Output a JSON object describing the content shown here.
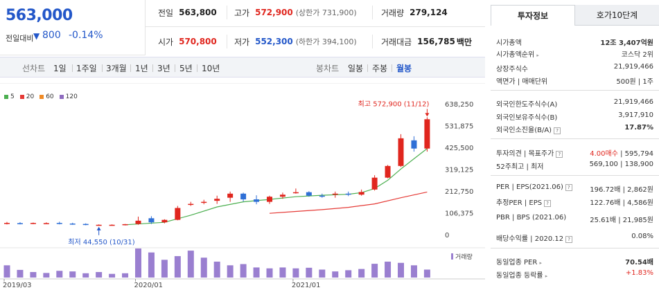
{
  "price": {
    "current": "563,000",
    "change_label": "전일대비",
    "change_arrow": "▼",
    "change_value": "800",
    "change_rate": "-0.14%"
  },
  "quote": {
    "prev_label": "전일",
    "prev_value": "563,800",
    "high_label": "고가",
    "high_value": "572,900",
    "upper_limit": "(상한가 731,900)",
    "volume_label": "거래량",
    "volume_value": "279,124",
    "open_label": "시가",
    "open_value": "570,800",
    "low_label": "저가",
    "low_value": "552,300",
    "lower_limit": "(하한가 394,100)",
    "amount_label": "거래대금",
    "amount_value": "156,785",
    "amount_unit": "백만"
  },
  "periods": {
    "line_label": "선차트",
    "line_items": [
      "1일",
      "1주일",
      "3개월",
      "1년",
      "3년",
      "5년",
      "10년"
    ],
    "candle_label": "봉차트",
    "candle_items": [
      "일봉",
      "주봉",
      "월봉"
    ],
    "active": "월봉"
  },
  "chart_data": {
    "type": "candlestick",
    "legend": [
      {
        "name": "5",
        "color": "#4caf50"
      },
      {
        "name": "20",
        "color": "#e53935"
      },
      {
        "name": "60",
        "color": "#f08a24"
      },
      {
        "name": "120",
        "color": "#8e6bbf"
      }
    ],
    "yticks": [
      "638,250",
      "531,875",
      "425,500",
      "319,125",
      "212,750",
      "106,375",
      "0"
    ],
    "ylim": [
      0,
      638250
    ],
    "xticks": [
      {
        "label": "2019/03",
        "index": 0
      },
      {
        "label": "2020/01",
        "index": 10
      },
      {
        "label": "2021/01",
        "index": 22
      }
    ],
    "annot_high": "최고 572,900 (11/12)",
    "annot_low": "최저 44,550 (10/31)",
    "volume_label": "거래량",
    "candles": [
      {
        "o": 55000,
        "h": 62000,
        "l": 50000,
        "c": 57000,
        "v": 40
      },
      {
        "o": 56000,
        "h": 61000,
        "l": 50000,
        "c": 55000,
        "v": 25
      },
      {
        "o": 55000,
        "h": 59000,
        "l": 51000,
        "c": 57000,
        "v": 18
      },
      {
        "o": 56000,
        "h": 60000,
        "l": 52000,
        "c": 56000,
        "v": 15
      },
      {
        "o": 57000,
        "h": 63000,
        "l": 50000,
        "c": 54000,
        "v": 22
      },
      {
        "o": 54000,
        "h": 58000,
        "l": 48000,
        "c": 52000,
        "v": 20
      },
      {
        "o": 52000,
        "h": 55000,
        "l": 46000,
        "c": 48000,
        "v": 14
      },
      {
        "o": 48000,
        "h": 50000,
        "l": 44550,
        "c": 48000,
        "v": 18
      },
      {
        "o": 48000,
        "h": 50000,
        "l": 45000,
        "c": 48000,
        "v": 12
      },
      {
        "o": 47000,
        "h": 52000,
        "l": 45000,
        "c": 51000,
        "v": 14
      },
      {
        "o": 52000,
        "h": 88000,
        "l": 48000,
        "c": 68000,
        "v": 95
      },
      {
        "o": 80000,
        "h": 90000,
        "l": 52000,
        "c": 60000,
        "v": 82
      },
      {
        "o": 60000,
        "h": 75000,
        "l": 55000,
        "c": 72000,
        "v": 58
      },
      {
        "o": 72000,
        "h": 140000,
        "l": 70000,
        "c": 130000,
        "v": 70
      },
      {
        "o": 150000,
        "h": 160000,
        "l": 140000,
        "c": 150000,
        "v": 88
      },
      {
        "o": 158000,
        "h": 170000,
        "l": 148000,
        "c": 160000,
        "v": 65
      },
      {
        "o": 165000,
        "h": 190000,
        "l": 150000,
        "c": 175000,
        "v": 52
      },
      {
        "o": 180000,
        "h": 210000,
        "l": 160000,
        "c": 200000,
        "v": 40
      },
      {
        "o": 200000,
        "h": 205000,
        "l": 162000,
        "c": 172000,
        "v": 44
      },
      {
        "o": 172000,
        "h": 192000,
        "l": 148000,
        "c": 160000,
        "v": 33
      },
      {
        "o": 160000,
        "h": 190000,
        "l": 150000,
        "c": 185000,
        "v": 30
      },
      {
        "o": 185000,
        "h": 205000,
        "l": 175000,
        "c": 195000,
        "v": 33
      },
      {
        "o": 205000,
        "h": 225000,
        "l": 200000,
        "c": 207000,
        "v": 30
      },
      {
        "o": 207000,
        "h": 212000,
        "l": 185000,
        "c": 190000,
        "v": 32
      },
      {
        "o": 190000,
        "h": 200000,
        "l": 180000,
        "c": 188000,
        "v": 26
      },
      {
        "o": 195000,
        "h": 210000,
        "l": 180000,
        "c": 200000,
        "v": 20
      },
      {
        "o": 200000,
        "h": 210000,
        "l": 188000,
        "c": 195000,
        "v": 24
      },
      {
        "o": 195000,
        "h": 220000,
        "l": 190000,
        "c": 208000,
        "v": 28
      },
      {
        "o": 220000,
        "h": 290000,
        "l": 215000,
        "c": 278000,
        "v": 45
      },
      {
        "o": 278000,
        "h": 340000,
        "l": 275000,
        "c": 335000,
        "v": 52
      },
      {
        "o": 335000,
        "h": 490000,
        "l": 330000,
        "c": 470000,
        "v": 48
      },
      {
        "o": 460000,
        "h": 480000,
        "l": 405000,
        "c": 420000,
        "v": 40
      },
      {
        "o": 420000,
        "h": 572900,
        "l": 405000,
        "c": 563000,
        "v": 26
      }
    ],
    "ma5": [
      [
        9,
        48000
      ],
      [
        12,
        60000
      ],
      [
        14,
        95000
      ],
      [
        16,
        135000
      ],
      [
        18,
        160000
      ],
      [
        20,
        172000
      ],
      [
        22,
        185000
      ],
      [
        24,
        192000
      ],
      [
        26,
        197000
      ],
      [
        27,
        205000
      ],
      [
        28,
        225000
      ],
      [
        29,
        265000
      ],
      [
        30,
        320000
      ],
      [
        31,
        370000
      ],
      [
        32,
        420000
      ]
    ],
    "ma20": [
      [
        20,
        104000
      ],
      [
        22,
        113000
      ],
      [
        24,
        122000
      ],
      [
        26,
        133000
      ],
      [
        28,
        150000
      ],
      [
        30,
        180000
      ],
      [
        32,
        208000
      ]
    ]
  },
  "side": {
    "tab_info": "투자정보",
    "tab_hoga": "호가10단계",
    "rows1": [
      {
        "k": "시가총액",
        "v": "12조 3,407억원"
      },
      {
        "k": "시가총액순위",
        "v": "코스닥 2위"
      },
      {
        "k": "상장주식수",
        "v": "21,919,466"
      },
      {
        "k": "액면가 | 매매단위",
        "v": "500원 | 1주"
      }
    ],
    "rows2": [
      {
        "k": "외국인한도주식수(A)",
        "v": "21,919,466"
      },
      {
        "k": "외국인보유주식수(B)",
        "v": "3,917,910"
      },
      {
        "k": "외국인소진율(B/A)",
        "v": "17.87%"
      }
    ],
    "opinion_label": "투자의견 | 목표주가",
    "opinion_value": "4.00매수",
    "target_value": "595,794",
    "w52_label": "52주최고 | 최저",
    "w52_value": "569,100 | 138,900",
    "rows3": [
      {
        "k": "PER | EPS(2021.06)",
        "v": "196.72배 | 2,862원"
      },
      {
        "k": "추정PER | EPS",
        "v": "122.76배 | 4,586원"
      },
      {
        "k": "PBR | BPS (2021.06)",
        "v": "25.61배 | 21,985원"
      },
      {
        "k": "배당수익률 | 2020.12",
        "v": "0.08%"
      }
    ],
    "sector_per_label": "동일업종 PER",
    "sector_per_value": "70.54배",
    "sector_rate_label": "동일업종 등락률",
    "sector_rate_value": "+1.83%"
  }
}
